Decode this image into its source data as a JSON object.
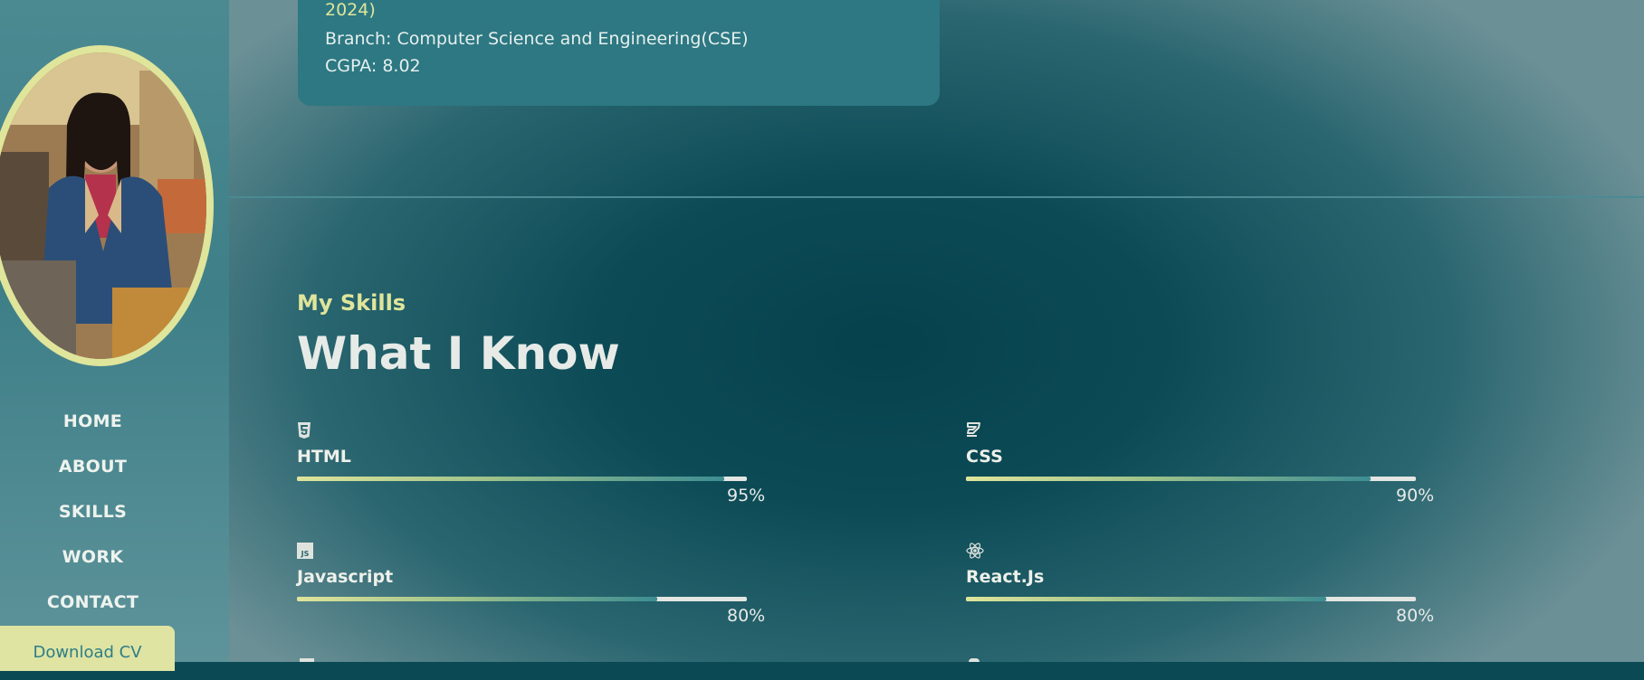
{
  "nav": {
    "items": [
      "HOME",
      "ABOUT",
      "SKILLS",
      "WORK",
      "CONTACT"
    ],
    "download_label": "Download CV"
  },
  "education": {
    "year_fragment": "2024)",
    "branch": "Branch: Computer Science and Engineering(CSE)",
    "cgpa": "CGPA: 8.02"
  },
  "skills": {
    "eyebrow": "My Skills",
    "heading": "What I Know",
    "items": [
      {
        "name": "HTML",
        "icon": "html5-icon",
        "percent_label": "95%",
        "level": 95
      },
      {
        "name": "CSS",
        "icon": "css3-icon",
        "percent_label": "90%",
        "level": 90
      },
      {
        "name": "Javascript",
        "icon": "javascript-icon",
        "percent_label": "80%",
        "level": 80
      },
      {
        "name": "React.Js",
        "icon": "react-icon",
        "percent_label": "80%",
        "level": 80
      }
    ]
  },
  "colors": {
    "accent": "#dfe59b",
    "teal": "#2d7882",
    "text_light": "#e7ebe7"
  }
}
